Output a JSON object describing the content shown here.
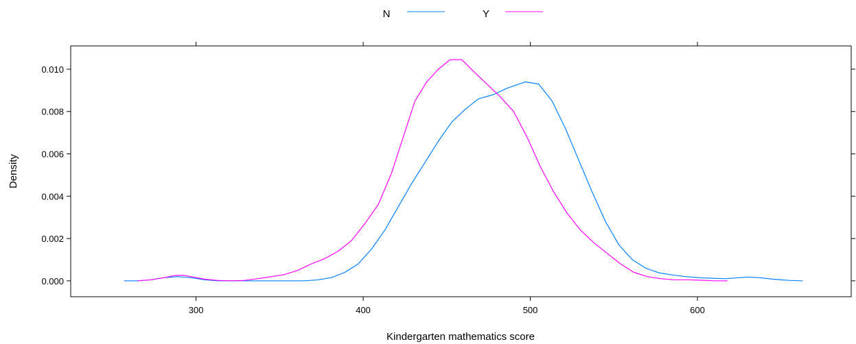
{
  "chart_data": {
    "type": "line",
    "title": "",
    "xlabel": "Kindergarten mathematics score",
    "ylabel": "Density",
    "xlim": [
      225,
      692
    ],
    "ylim": [
      -0.00075,
      0.0111
    ],
    "x_ticks": [
      300,
      400,
      500,
      600
    ],
    "x_tick_labels": [
      "300",
      "400",
      "500",
      "600"
    ],
    "y_ticks": [
      0,
      0.002,
      0.004,
      0.006,
      0.008,
      0.01
    ],
    "y_tick_labels": [
      "0.000",
      "0.002",
      "0.004",
      "0.006",
      "0.008",
      "0.010"
    ],
    "grid": false,
    "legend_position": "top-center",
    "series": [
      {
        "name": "N",
        "color": "#0080ff",
        "points": [
          [
            257,
            0.0
          ],
          [
            265,
            0.0
          ],
          [
            273,
            5e-05
          ],
          [
            281,
            0.00015
          ],
          [
            289,
            0.0002
          ],
          [
            297,
            0.00015
          ],
          [
            305,
            5e-05
          ],
          [
            313,
            0.0
          ],
          [
            330,
            0.0
          ],
          [
            350,
            0.0
          ],
          [
            365,
            0.0
          ],
          [
            373,
            5e-05
          ],
          [
            381,
            0.00015
          ],
          [
            389,
            0.0004
          ],
          [
            397,
            0.0008
          ],
          [
            405,
            0.0015
          ],
          [
            413,
            0.0024
          ],
          [
            421,
            0.0035
          ],
          [
            429,
            0.0046
          ],
          [
            437,
            0.0056
          ],
          [
            445,
            0.0066
          ],
          [
            453,
            0.0075
          ],
          [
            461,
            0.0081
          ],
          [
            469,
            0.0086
          ],
          [
            478,
            0.0088
          ],
          [
            486,
            0.0091
          ],
          [
            497,
            0.0094
          ],
          [
            505,
            0.0093
          ],
          [
            513,
            0.0085
          ],
          [
            521,
            0.0072
          ],
          [
            529,
            0.0057
          ],
          [
            537,
            0.0042
          ],
          [
            545,
            0.0028
          ],
          [
            553,
            0.0017
          ],
          [
            561,
            0.001
          ],
          [
            569,
            0.0006
          ],
          [
            577,
            0.00038
          ],
          [
            585,
            0.00028
          ],
          [
            593,
            0.0002
          ],
          [
            601,
            0.00015
          ],
          [
            609,
            0.00012
          ],
          [
            617,
            0.0001
          ],
          [
            625,
            0.00015
          ],
          [
            630,
            0.00018
          ],
          [
            637,
            0.00015
          ],
          [
            645,
            8e-05
          ],
          [
            655,
            2e-05
          ],
          [
            663,
            0.0
          ]
        ]
      },
      {
        "name": "Y",
        "color": "#ff00ff",
        "points": [
          [
            265,
            0.0
          ],
          [
            273,
            5e-05
          ],
          [
            281,
            0.00015
          ],
          [
            287,
            0.00025
          ],
          [
            292,
            0.00027
          ],
          [
            297,
            0.0002
          ],
          [
            305,
            8e-05
          ],
          [
            313,
            2e-05
          ],
          [
            321,
            0.0
          ],
          [
            329,
            2e-05
          ],
          [
            337,
            0.0001
          ],
          [
            345,
            0.0002
          ],
          [
            353,
            0.0003
          ],
          [
            361,
            0.0005
          ],
          [
            369,
            0.0008
          ],
          [
            377,
            0.00105
          ],
          [
            385,
            0.0014
          ],
          [
            393,
            0.0019
          ],
          [
            401,
            0.0027
          ],
          [
            409,
            0.0036
          ],
          [
            417,
            0.0051
          ],
          [
            424,
            0.0068
          ],
          [
            431,
            0.0085
          ],
          [
            438,
            0.0094
          ],
          [
            445,
            0.01
          ],
          [
            452,
            0.01045
          ],
          [
            459,
            0.01045
          ],
          [
            466,
            0.0099
          ],
          [
            474,
            0.0093
          ],
          [
            482,
            0.0087
          ],
          [
            490,
            0.008
          ],
          [
            498,
            0.0068
          ],
          [
            506,
            0.0054
          ],
          [
            514,
            0.0042
          ],
          [
            522,
            0.0032
          ],
          [
            530,
            0.0024
          ],
          [
            538,
            0.0018
          ],
          [
            546,
            0.0013
          ],
          [
            554,
            0.0008
          ],
          [
            562,
            0.0004
          ],
          [
            570,
            0.0002
          ],
          [
            578,
            0.0001
          ],
          [
            586,
            5e-05
          ],
          [
            594,
            5e-05
          ],
          [
            602,
            3e-05
          ],
          [
            610,
            0.0
          ],
          [
            618,
            0.0
          ]
        ]
      }
    ]
  }
}
